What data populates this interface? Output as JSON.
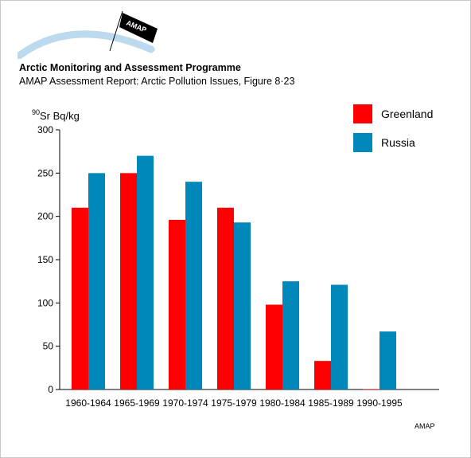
{
  "header": {
    "title": "Arctic Monitoring and Assessment Programme",
    "subtitle": "AMAP Assessment Report: Arctic Pollution Issues, Figure 8·23"
  },
  "logo": {
    "text": "AMAP",
    "arc_color": "#bcd9ee"
  },
  "credit": "AMAP",
  "colors": {
    "greenland": "#ff0000",
    "russia": "#0088bb",
    "axis": "#000000"
  },
  "chart_data": {
    "type": "bar",
    "ylabel_superscript": "90",
    "ylabel": "Sr Bq/kg",
    "categories": [
      "1960-1964",
      "1965-1969",
      "1970-1974",
      "1975-1979",
      "1980-1984",
      "1985-1989",
      "1990-1995"
    ],
    "series": [
      {
        "name": "Greenland",
        "values": [
          210,
          250,
          196,
          210,
          98,
          33,
          0
        ]
      },
      {
        "name": "Russia",
        "values": [
          250,
          270,
          240,
          193,
          125,
          121,
          67
        ]
      }
    ],
    "ylim": [
      0,
      300
    ],
    "yticks": [
      0,
      50,
      100,
      150,
      200,
      250,
      300
    ],
    "legend_position": "top-right",
    "grid": false
  }
}
